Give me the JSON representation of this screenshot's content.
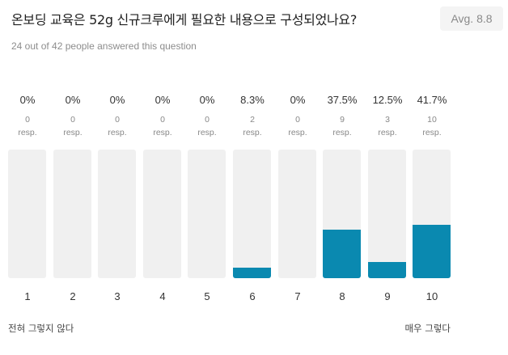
{
  "question": {
    "title": "온보딩 교육은 52g 신규크루에게 필요한 내용으로 구성되었나요?",
    "average": "Avg. 8.8",
    "answered_text": "24 out of 42 people answered this question"
  },
  "scale": {
    "low_label": "전혀 그렇지 않다",
    "high_label": "매우 그렇다"
  },
  "colors": {
    "bar_fill": "#0a89b0",
    "bar_track": "#f0f0f0"
  },
  "chart_data": {
    "type": "bar",
    "categories": [
      "1",
      "2",
      "3",
      "4",
      "5",
      "6",
      "7",
      "8",
      "9",
      "10"
    ],
    "percent_labels": [
      "0%",
      "0%",
      "0%",
      "0%",
      "0%",
      "8.3%",
      "0%",
      "37.5%",
      "12.5%",
      "41.7%"
    ],
    "percent_values": [
      0,
      0,
      0,
      0,
      0,
      8.3,
      0,
      37.5,
      12.5,
      41.7
    ],
    "counts": [
      "0",
      "0",
      "0",
      "0",
      "0",
      "2",
      "0",
      "9",
      "3",
      "10"
    ],
    "count_unit": "resp.",
    "ylim": [
      0,
      100
    ]
  }
}
